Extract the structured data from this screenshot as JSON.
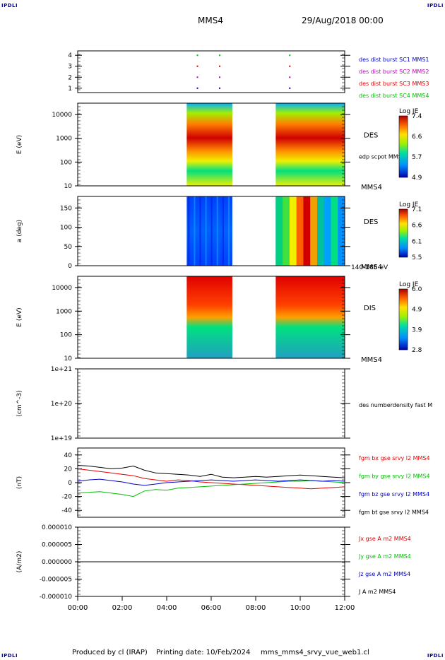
{
  "corner_labels": {
    "tl": "IPDLI",
    "tr": "IPDLI",
    "bl": "IPDLI",
    "br": "IPDLI"
  },
  "header": {
    "spacecraft": "MMS4",
    "date": "29/Aug/2018 00:00"
  },
  "footer": {
    "produced_by": "Produced by cl (IRAP)",
    "printing_date": "Printing date: 10/Feb/2024",
    "filename": "mms_mms4_srvy_vue_web1.cl"
  },
  "x_axis": {
    "ticks": [
      "00:00",
      "02:00",
      "04:00",
      "06:00",
      "08:00",
      "10:00",
      "12:00"
    ]
  },
  "colors": {
    "red": "#e00000",
    "green": "#00c000",
    "blue": "#0000c8",
    "magenta": "#c000c0",
    "black": "#000000"
  },
  "chart_data": [
    {
      "type": "scatter",
      "panel": "burst-availability",
      "yticks": [
        "1",
        "2",
        "3",
        "4"
      ],
      "ylim": [
        0.6,
        4.4
      ],
      "legend": [
        {
          "text": "des dist burst SC1 MMS1",
          "color": "#0000c8"
        },
        {
          "text": "des dist burst SC2 MMS2",
          "color": "#c000c0"
        },
        {
          "text": "des dist burst SC3 MMS3",
          "color": "#e00000"
        },
        {
          "text": "des dist burst SC4 MMS4",
          "color": "#00c000"
        }
      ],
      "series": [
        {
          "name": "des dist burst SC1 MMS1",
          "x": [
            5.35,
            6.35,
            9.5
          ],
          "values": [
            1,
            1,
            1
          ]
        },
        {
          "name": "des dist burst SC2 MMS2",
          "x": [
            5.35,
            6.35,
            9.5
          ],
          "values": [
            2,
            2,
            2
          ]
        },
        {
          "name": "des dist burst SC3 MMS3",
          "x": [
            5.35,
            6.35,
            9.5
          ],
          "values": [
            3,
            3,
            3
          ]
        },
        {
          "name": "des dist burst SC4 MMS4",
          "x": [
            5.35,
            6.35,
            9.5
          ],
          "values": [
            4,
            4,
            4
          ]
        }
      ]
    },
    {
      "type": "heatmap",
      "panel": "des-energy",
      "ylabel": "E (eV)",
      "yticks": [
        "10",
        "100",
        "1000",
        "10000"
      ],
      "ylim": [
        10,
        30000
      ],
      "label": "DES",
      "sublabel": "edp scpot MMS4",
      "sc_label": "MMS4",
      "colorbar": {
        "title": "Log JE",
        "ticks": [
          "7.4",
          "6.6",
          "5.7",
          "4.9"
        ],
        "range": [
          4.9,
          7.4
        ]
      },
      "data_intervals": [
        [
          4.9,
          6.95
        ],
        [
          8.9,
          12.0
        ]
      ]
    },
    {
      "type": "heatmap",
      "panel": "des-pitch",
      "ylabel": "a (deg)",
      "yticks": [
        "0",
        "50",
        "100",
        "150"
      ],
      "ylim": [
        0,
        180
      ],
      "label": "DES",
      "sc_label": "MMS4",
      "energy_label": "140-186 eV",
      "colorbar": {
        "title": "Log JE",
        "ticks": [
          "7.1",
          "6.6",
          "6.1",
          "5.5"
        ],
        "range": [
          5.5,
          7.1
        ]
      },
      "data_intervals": [
        [
          4.9,
          6.95
        ],
        [
          8.9,
          12.0
        ]
      ]
    },
    {
      "type": "heatmap",
      "panel": "dis-energy",
      "ylabel": "E (eV)",
      "yticks": [
        "10",
        "100",
        "1000",
        "10000"
      ],
      "ylim": [
        10,
        30000
      ],
      "label": "DIS",
      "sc_label": "MMS4",
      "colorbar": {
        "title": "Log JE",
        "ticks": [
          "6.0",
          "4.9",
          "3.9",
          "2.8"
        ],
        "range": [
          2.8,
          6.0
        ]
      },
      "data_intervals": [
        [
          4.9,
          6.95
        ],
        [
          8.9,
          12.0
        ]
      ]
    },
    {
      "type": "line",
      "panel": "density",
      "ylabel": "(cm^-3)",
      "yticks": [
        "1e+19",
        "1e+20",
        "1e+21"
      ],
      "legend": [
        {
          "text": "des numberdensity fast M",
          "color": "#000000"
        }
      ],
      "series": []
    },
    {
      "type": "line",
      "panel": "magnetic-field",
      "ylabel": "(nT)",
      "yticks": [
        "-40",
        "-20",
        "0",
        "20",
        "40"
      ],
      "ylim": [
        -50,
        50
      ],
      "legend": [
        {
          "text": "fgm bx gse srvy l2 MMS4",
          "color": "#e00000"
        },
        {
          "text": "fgm by gse srvy l2 MMS4",
          "color": "#00c000"
        },
        {
          "text": "fgm bz gse srvy l2 MMS4",
          "color": "#0000c8"
        },
        {
          "text": "fgm bt gse srvy l2 MMS4",
          "color": "#000000"
        }
      ],
      "series": [
        {
          "name": "fgm bx gse srvy l2 MMS4",
          "color": "#e00000",
          "x": [
            0,
            0.5,
            1,
            1.5,
            2,
            2.5,
            3,
            3.5,
            4,
            4.5,
            5,
            5.5,
            6,
            6.5,
            7,
            7.5,
            8,
            8.5,
            9,
            9.5,
            10,
            10.5,
            11,
            11.5,
            12
          ],
          "values": [
            20,
            18,
            16,
            14,
            12,
            10,
            6,
            4,
            2,
            4,
            3,
            1,
            0,
            -1,
            -2,
            -3,
            -4,
            -5,
            -6,
            -7,
            -8,
            -9,
            -8,
            -7,
            -6
          ]
        },
        {
          "name": "fgm by gse srvy l2 MMS4",
          "color": "#00c000",
          "x": [
            0,
            0.5,
            1,
            1.5,
            2,
            2.5,
            3,
            3.5,
            4,
            4.5,
            5,
            5.5,
            6,
            6.5,
            7,
            7.5,
            8,
            8.5,
            9,
            9.5,
            10,
            10.5,
            11,
            11.5,
            12
          ],
          "values": [
            -15,
            -14,
            -13,
            -15,
            -17,
            -20,
            -12,
            -10,
            -11,
            -8,
            -7,
            -6,
            -5,
            -4,
            -3,
            -2,
            -1,
            0,
            1,
            2,
            2,
            3,
            2,
            1,
            0
          ]
        },
        {
          "name": "fgm bz gse srvy l2 MMS4",
          "color": "#0000c8",
          "x": [
            0,
            0.5,
            1,
            1.5,
            2,
            2.5,
            3,
            3.5,
            4,
            4.5,
            5,
            5.5,
            6,
            6.5,
            7,
            7.5,
            8,
            8.5,
            9,
            9.5,
            10,
            10.5,
            11,
            11.5,
            12
          ],
          "values": [
            2,
            4,
            5,
            3,
            1,
            -2,
            -4,
            -2,
            0,
            1,
            2,
            3,
            4,
            3,
            2,
            3,
            4,
            3,
            2,
            3,
            4,
            3,
            2,
            3,
            2
          ]
        },
        {
          "name": "fgm bt gse srvy l2 MMS4",
          "color": "#000000",
          "x": [
            0,
            0.5,
            1,
            1.5,
            2,
            2.5,
            3,
            3.5,
            4,
            4.5,
            5,
            5.5,
            6,
            6.5,
            7,
            7.5,
            8,
            8.5,
            9,
            9.5,
            10,
            10.5,
            11,
            11.5,
            12
          ],
          "values": [
            25,
            24,
            22,
            20,
            21,
            24,
            18,
            14,
            13,
            12,
            11,
            9,
            12,
            8,
            7,
            8,
            9,
            8,
            9,
            10,
            11,
            10,
            9,
            8,
            7
          ]
        }
      ]
    },
    {
      "type": "line",
      "panel": "current-density",
      "ylabel": "(A/m2)",
      "yticks": [
        "-0.000010",
        "-0.000005",
        "0.000000",
        "0.000005",
        "0.000010"
      ],
      "ylim": [
        -1e-05,
        1e-05
      ],
      "legend": [
        {
          "text": "Jx gse A m2 MMS4",
          "color": "#e00000"
        },
        {
          "text": "Jy gse A m2 MMS4",
          "color": "#00c000"
        },
        {
          "text": "Jz gse A m2 MMS4",
          "color": "#0000c8"
        },
        {
          "text": "J A m2 MMS4",
          "color": "#000000"
        }
      ],
      "series": [
        {
          "name": "J A m2 MMS4",
          "color": "#000000",
          "x": [
            0,
            12
          ],
          "values": [
            0,
            0
          ]
        }
      ]
    }
  ]
}
